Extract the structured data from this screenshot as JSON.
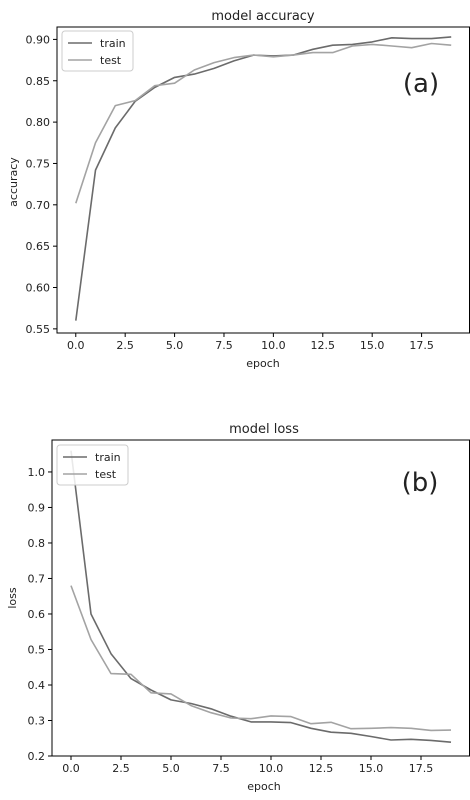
{
  "chart_data": [
    {
      "type": "line",
      "title": "model accuracy",
      "xlabel": "epoch",
      "ylabel": "accuracy",
      "panel_label": "(a)",
      "x": [
        0,
        1,
        2,
        3,
        4,
        5,
        6,
        7,
        8,
        9,
        10,
        11,
        12,
        13,
        14,
        15,
        16,
        17,
        18,
        19
      ],
      "xlim": [
        -0.95,
        19.95
      ],
      "ylim": [
        0.545,
        0.915
      ],
      "xticks": [
        "0.0",
        "2.5",
        "5.0",
        "7.5",
        "10.0",
        "12.5",
        "15.0",
        "17.5"
      ],
      "yticks": [
        "0.55",
        "0.60",
        "0.65",
        "0.70",
        "0.75",
        "0.80",
        "0.85",
        "0.90"
      ],
      "legend_position": "top-left",
      "grid": false,
      "series": [
        {
          "name": "train",
          "color": "#6b6b6b",
          "values": [
            0.56,
            0.742,
            0.793,
            0.825,
            0.842,
            0.854,
            0.858,
            0.865,
            0.874,
            0.881,
            0.88,
            0.881,
            0.888,
            0.893,
            0.894,
            0.897,
            0.902,
            0.901,
            0.901,
            0.903
          ]
        },
        {
          "name": "test",
          "color": "#a3a3a3",
          "values": [
            0.702,
            0.775,
            0.82,
            0.826,
            0.844,
            0.847,
            0.863,
            0.872,
            0.878,
            0.881,
            0.879,
            0.881,
            0.884,
            0.884,
            0.892,
            0.894,
            0.892,
            0.89,
            0.895,
            0.893
          ]
        }
      ]
    },
    {
      "type": "line",
      "title": "model loss",
      "xlabel": "epoch",
      "ylabel": "loss",
      "panel_label": "(b)",
      "x": [
        0,
        1,
        2,
        3,
        4,
        5,
        6,
        7,
        8,
        9,
        10,
        11,
        12,
        13,
        14,
        15,
        16,
        17,
        18,
        19
      ],
      "xlim": [
        -0.95,
        19.95
      ],
      "ylim": [
        0.2,
        1.09
      ],
      "xticks": [
        "0.0",
        "2.5",
        "5.0",
        "7.5",
        "10.0",
        "12.5",
        "15.0",
        "17.5"
      ],
      "yticks": [
        "0.2",
        "0.3",
        "0.4",
        "0.5",
        "0.6",
        "0.7",
        "0.8",
        "0.9",
        "1.0"
      ],
      "legend_position": "top-left",
      "grid": false,
      "series": [
        {
          "name": "train",
          "color": "#6b6b6b",
          "values": [
            1.06,
            0.6,
            0.488,
            0.418,
            0.386,
            0.358,
            0.348,
            0.333,
            0.312,
            0.296,
            0.296,
            0.294,
            0.278,
            0.267,
            0.264,
            0.255,
            0.245,
            0.247,
            0.244,
            0.239
          ]
        },
        {
          "name": "test",
          "color": "#a3a3a3",
          "values": [
            0.68,
            0.528,
            0.432,
            0.43,
            0.378,
            0.375,
            0.342,
            0.322,
            0.307,
            0.305,
            0.313,
            0.311,
            0.291,
            0.295,
            0.277,
            0.278,
            0.28,
            0.278,
            0.272,
            0.273
          ]
        }
      ]
    }
  ]
}
